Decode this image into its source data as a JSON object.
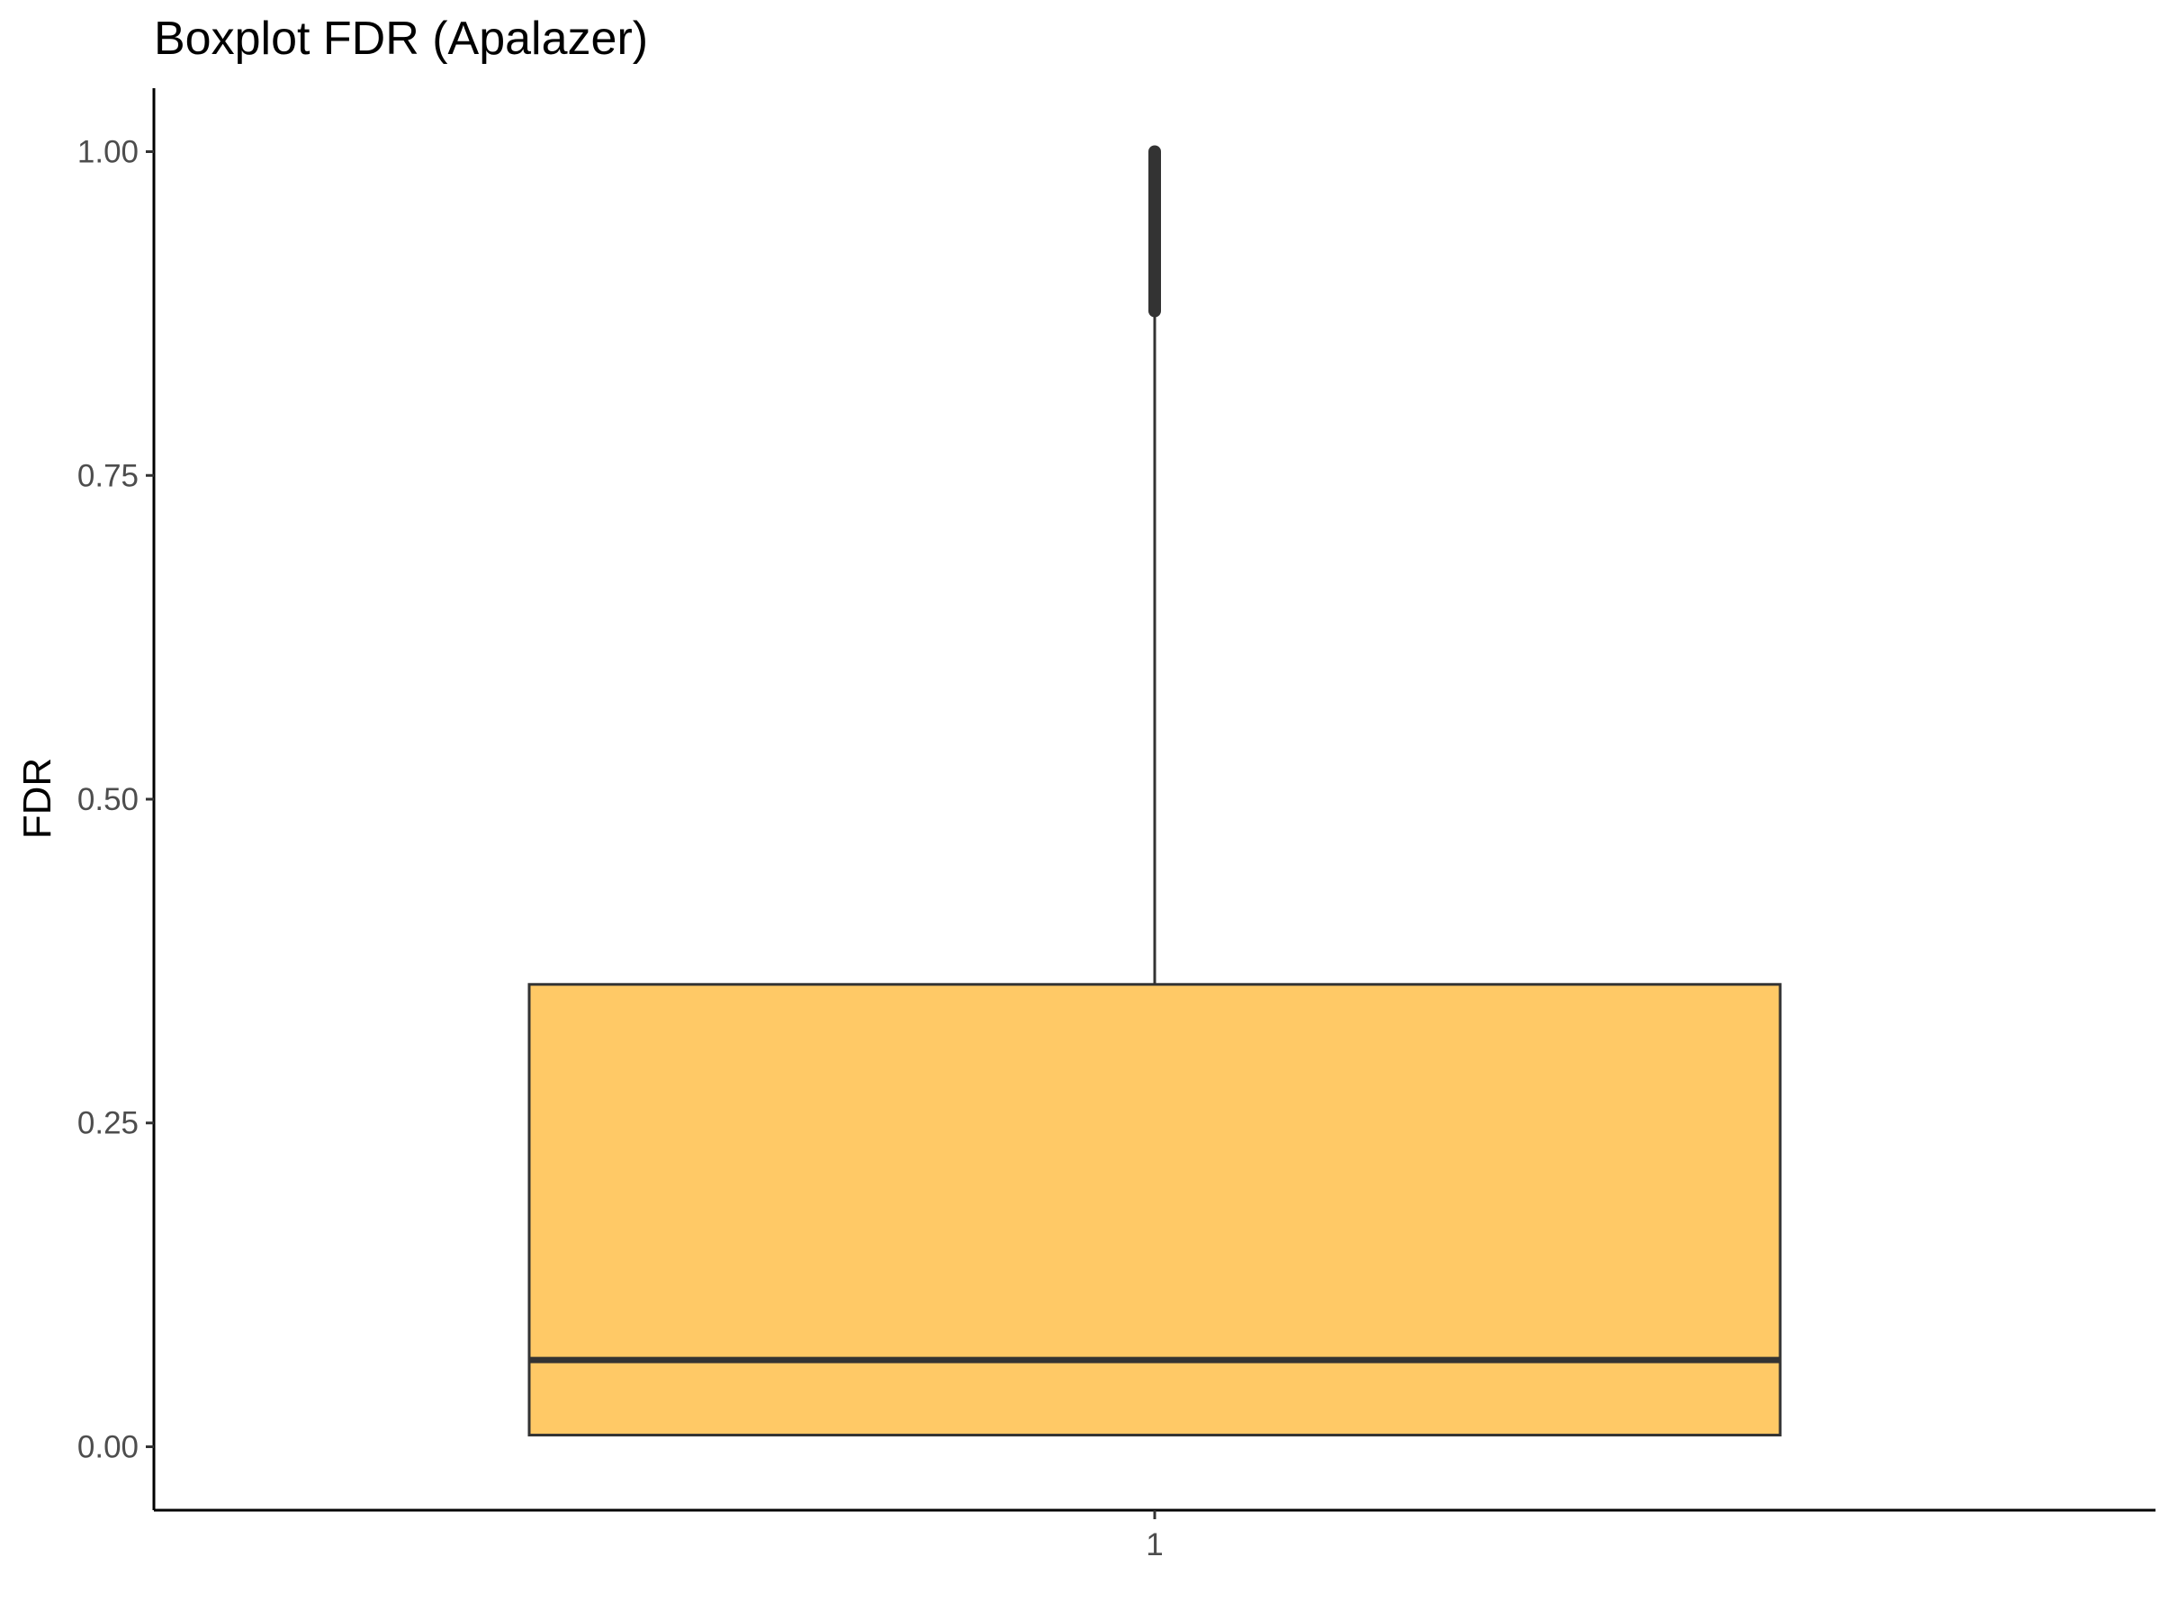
{
  "chart_data": {
    "type": "boxplot",
    "title": "Boxplot FDR (Apalazer)",
    "xlabel": "",
    "ylabel": "FDR",
    "ylim": [
      -0.049,
      1.049
    ],
    "y_ticks": [
      "0.00",
      "0.25",
      "0.50",
      "0.75",
      "1.00"
    ],
    "y_tick_values": [
      0,
      0.25,
      0.5,
      0.75,
      1.0
    ],
    "categories": [
      "1"
    ],
    "grid": false,
    "legend": "none",
    "boxes": [
      {
        "category": "1",
        "min": 0.009,
        "q1": 0.009,
        "median": 0.067,
        "q3": 0.357,
        "whisker_high": 0.877,
        "outlier_range": [
          0.877,
          1.0
        ]
      }
    ],
    "colors": {
      "box_fill": "#FFC966",
      "box_stroke": "#333333",
      "axis": "#000000",
      "tick_text": "#4d4d4d"
    }
  }
}
